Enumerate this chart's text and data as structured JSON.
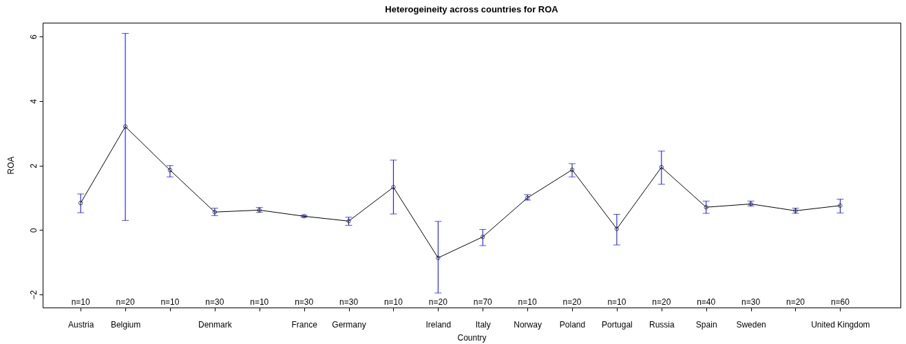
{
  "chart_data": {
    "type": "line",
    "title": "Heterogeineity across countries for ROA",
    "xlabel": "Country",
    "ylabel": "ROA",
    "categories": [
      "Austria",
      "Belgium",
      null,
      "Denmark",
      null,
      "France",
      "Germany",
      null,
      "Ireland",
      "Italy",
      "Norway",
      "Poland",
      "Portugal",
      "Russia",
      "Spain",
      "Sweden",
      null,
      "United Kingdom"
    ],
    "series": [
      {
        "color": "#000000",
        "values": [
          0.84,
          3.21,
          1.86,
          0.56,
          0.62,
          0.43,
          0.28,
          1.33,
          -0.86,
          -0.21,
          1.0,
          1.87,
          0.04,
          1.95,
          0.71,
          0.81,
          0.6,
          0.76
        ],
        "errors": [
          [
            0.54,
            1.12
          ],
          [
            0.3,
            6.1
          ],
          [
            1.65,
            2.0
          ],
          [
            0.45,
            0.68
          ],
          [
            0.55,
            0.7
          ],
          [
            0.4,
            0.46
          ],
          [
            0.15,
            0.4
          ],
          [
            0.5,
            2.17
          ],
          [
            -1.95,
            0.27
          ],
          [
            -0.48,
            0.02
          ],
          [
            0.93,
            1.1
          ],
          [
            1.65,
            2.06
          ],
          [
            -0.46,
            0.49
          ],
          [
            1.42,
            2.45
          ],
          [
            0.52,
            0.9
          ],
          [
            0.75,
            0.9
          ],
          [
            0.52,
            0.68
          ],
          [
            0.53,
            0.96
          ]
        ]
      }
    ],
    "annotations": [
      "n=10",
      "n=20",
      "n=10",
      "n=30",
      "n=10",
      "n=30",
      "n=30",
      "n=10",
      "n=20",
      "n=70",
      "n=10",
      "n=20",
      "n=10",
      "n=20",
      "n=40",
      "n=30",
      "n=20",
      "n=60"
    ],
    "ylim": [
      -2.4,
      6.43
    ],
    "yticks": [
      -2,
      0,
      2,
      4,
      6
    ],
    "marker": "circle",
    "line_style": "solid",
    "grid": false
  }
}
